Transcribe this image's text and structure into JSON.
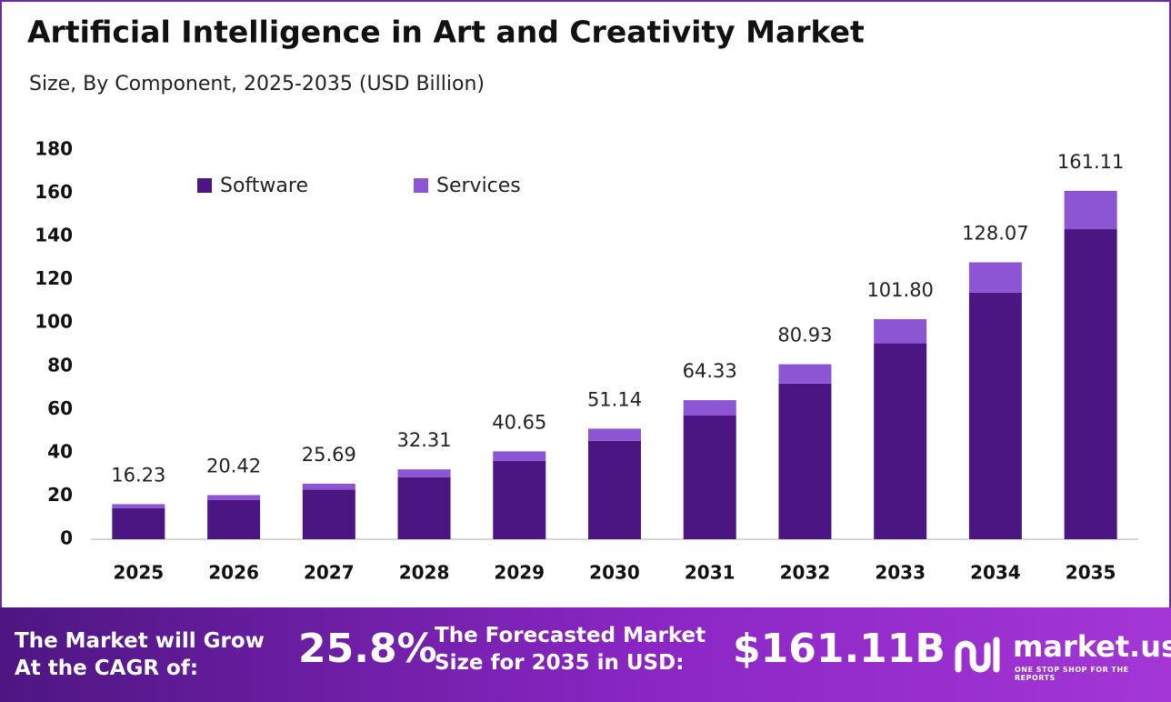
{
  "chart_data": {
    "type": "stacked-bar",
    "title": "Artificial Intelligence in Art and Creativity Market",
    "subtitle": "Size, By Component, 2025-2035 (USD Billion)",
    "categories": [
      "2025",
      "2026",
      "2027",
      "2028",
      "2029",
      "2030",
      "2031",
      "2032",
      "2033",
      "2034",
      "2035"
    ],
    "series": [
      {
        "name": "Software",
        "color": "#4b1681",
        "values": [
          14.4,
          18.2,
          22.9,
          28.7,
          36.2,
          45.5,
          57.2,
          72.0,
          90.6,
          114.0,
          143.4
        ]
      },
      {
        "name": "Services",
        "color": "#8b55d4",
        "values": [
          1.83,
          2.22,
          2.79,
          3.61,
          4.45,
          5.64,
          7.13,
          8.93,
          11.2,
          14.07,
          17.71
        ]
      }
    ],
    "totals": [
      16.23,
      20.42,
      25.69,
      32.31,
      40.65,
      51.14,
      64.33,
      80.93,
      101.8,
      128.07,
      161.11
    ],
    "total_labels": [
      "16.23",
      "20.42",
      "25.69",
      "32.31",
      "40.65",
      "51.14",
      "64.33",
      "80.93",
      "101.80",
      "128.07",
      "161.11"
    ],
    "ylim": [
      0,
      180
    ],
    "yticks": [
      0,
      20,
      40,
      60,
      80,
      100,
      120,
      140,
      160,
      180
    ],
    "legend": "top-left"
  },
  "footer": {
    "cagr_text": [
      "The Market will Grow",
      "At the CAGR of:"
    ],
    "cagr_value": "25.8%",
    "forecast_text": [
      "The Forecasted Market",
      "Size for 2035 in USD:"
    ],
    "forecast_value": "$161.11B",
    "brand": "market.us",
    "tagline": "ONE STOP SHOP FOR THE REPORTS"
  }
}
